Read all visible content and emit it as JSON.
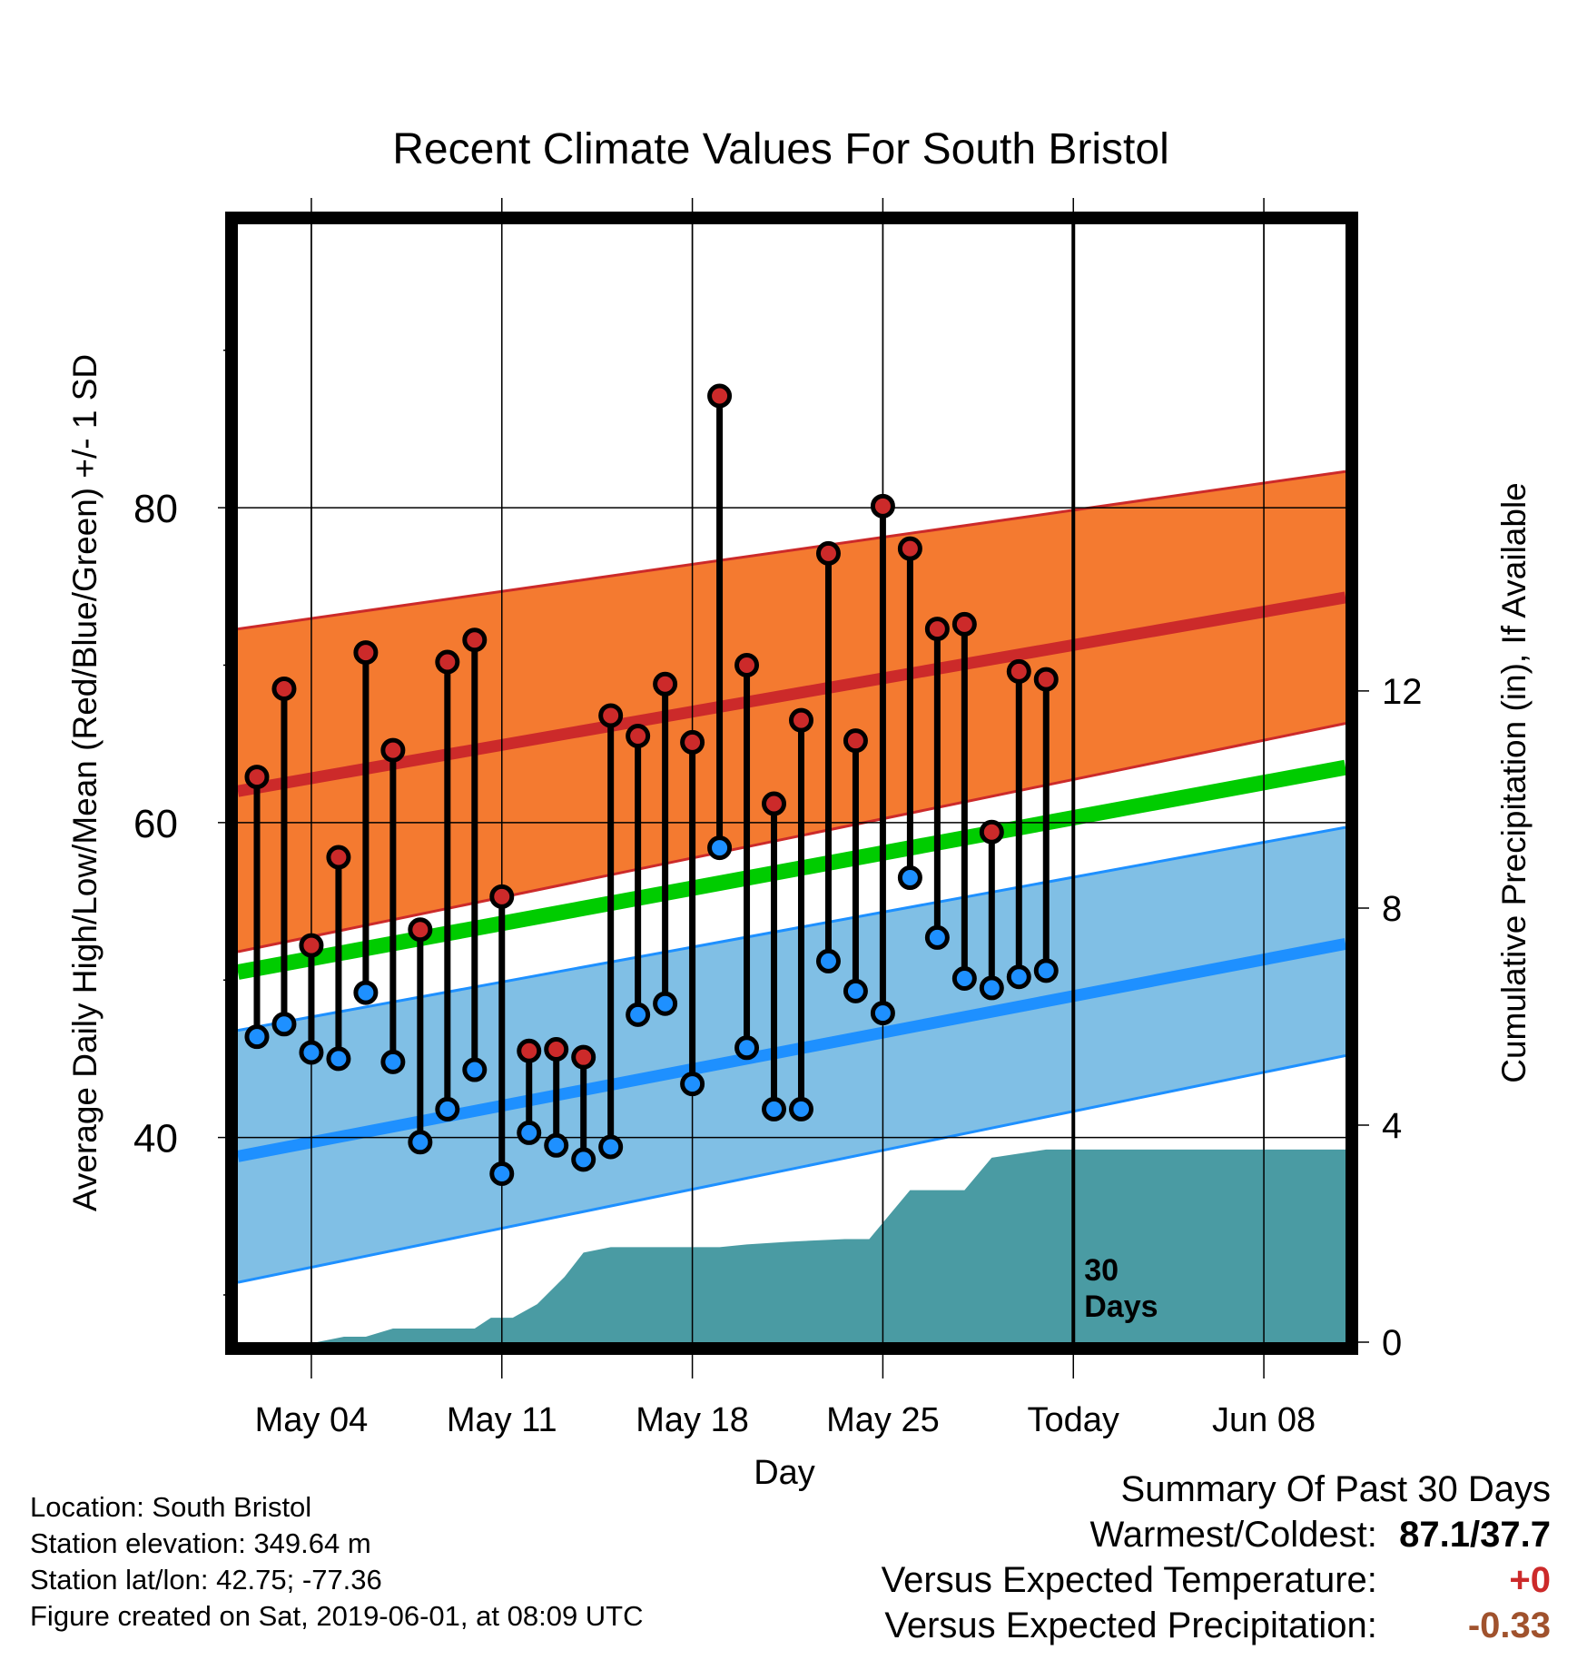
{
  "chart_data": {
    "type": "line",
    "title": "Recent Climate Values For South Bristol",
    "xlabel": "Day",
    "ylabel_left": "Average Daily High/Low/Mean (Red/Blue/Green) +/- 1 SD",
    "ylabel_right": "Cumulative Precipitation (in), If Available",
    "x_tick_labels": [
      "May 04",
      "May 11",
      "May 18",
      "May 25",
      "Today",
      "Jun 08"
    ],
    "x_tick_days": [
      3,
      10,
      17,
      24,
      31,
      38
    ],
    "xlim_days": [
      0.3,
      41
    ],
    "ylim": [
      27,
      98
    ],
    "y_ticks": [
      40,
      60,
      80
    ],
    "y_minor_ticks": [
      30,
      50,
      70,
      90
    ],
    "precip_ylim": [
      0,
      20.6
    ],
    "precip_ticks": [
      0,
      4,
      8,
      12
    ],
    "today_day": 31,
    "today_label": "30 Days",
    "grid": true,
    "colors": {
      "high_band": "#f47a30",
      "high_line": "#cc2a2a",
      "low_band": "#80bfe5",
      "low_line": "#1e90ff",
      "mean_line": "#00cc00",
      "precip": "#4a9ba3",
      "high_point": "#cc2a2a",
      "low_point": "#1e90ff"
    },
    "normals": {
      "x": [
        0.3,
        41
      ],
      "high_mean": [
        62,
        74.3
      ],
      "high_upper": [
        72.3,
        82.3
      ],
      "high_lower": [
        51.8,
        66.3
      ],
      "low_mean": [
        38.8,
        52.3
      ],
      "low_upper": [
        46.8,
        59.7
      ],
      "low_lower": [
        30.8,
        45.2
      ],
      "avg_mean": [
        50.5,
        63.5
      ]
    },
    "daily": {
      "x": [
        1,
        2,
        3,
        4,
        5,
        6,
        7,
        8,
        9,
        10,
        11,
        12,
        13,
        14,
        15,
        16,
        17,
        18,
        19,
        20,
        21,
        22,
        23,
        24,
        25,
        26,
        27,
        28,
        29,
        30
      ],
      "high": [
        62.9,
        68.5,
        52.2,
        57.8,
        70.8,
        64.6,
        53.2,
        70.2,
        71.6,
        55.3,
        45.5,
        45.6,
        45.1,
        66.8,
        65.5,
        68.8,
        65.1,
        87.1,
        70,
        61.2,
        66.5,
        77.1,
        65.2,
        80.1,
        77.4,
        72.3,
        72.6,
        59.4,
        69.6,
        69.1
      ],
      "low": [
        46.4,
        47.2,
        45.4,
        45.0,
        49.2,
        44.8,
        39.7,
        41.8,
        44.3,
        37.7,
        40.3,
        39.5,
        38.6,
        39.4,
        47.8,
        48.5,
        43.4,
        58.4,
        45.7,
        41.8,
        41.8,
        51.2,
        49.3,
        47.9,
        56.5,
        52.7,
        50.1,
        49.5,
        50.2,
        50.6
      ]
    },
    "precip": {
      "x": [
        0.3,
        3.2,
        4.2,
        5.0,
        6.0,
        7.6,
        9.0,
        9.6,
        10.0,
        10.4,
        11.3,
        12.3,
        13.0,
        14.0,
        17.0,
        18.0,
        19.0,
        20.5,
        22.6,
        23.5,
        24.0,
        25.0,
        26.5,
        27.0,
        28.0,
        30.0,
        31.0,
        41.0
      ],
      "values": [
        0,
        0,
        0.1,
        0.1,
        0.25,
        0.25,
        0.25,
        0.45,
        0.45,
        0.45,
        0.7,
        1.2,
        1.65,
        1.75,
        1.75,
        1.75,
        1.8,
        1.85,
        1.9,
        1.9,
        2.2,
        2.8,
        2.8,
        2.8,
        3.4,
        3.55,
        3.55,
        3.55
      ]
    }
  },
  "footer": {
    "location": "Location: South Bristol",
    "elevation": "Station elevation: 349.64 m",
    "latlon": "Station lat/lon: 42.75; -77.36",
    "created": "Figure created on Sat, 2019-06-01, at 08:09 UTC"
  },
  "summary": {
    "title": "Summary Of Past 30 Days",
    "warm_cold_label": "Warmest/Coldest:",
    "warm_cold_value": "87.1/37.7",
    "temp_label": "Versus Expected Temperature:",
    "temp_value": "+0",
    "temp_color": "#cc2a2a",
    "precip_label": "Versus Expected Precipitation:",
    "precip_value": "-0.33",
    "precip_color": "#a0522d"
  }
}
